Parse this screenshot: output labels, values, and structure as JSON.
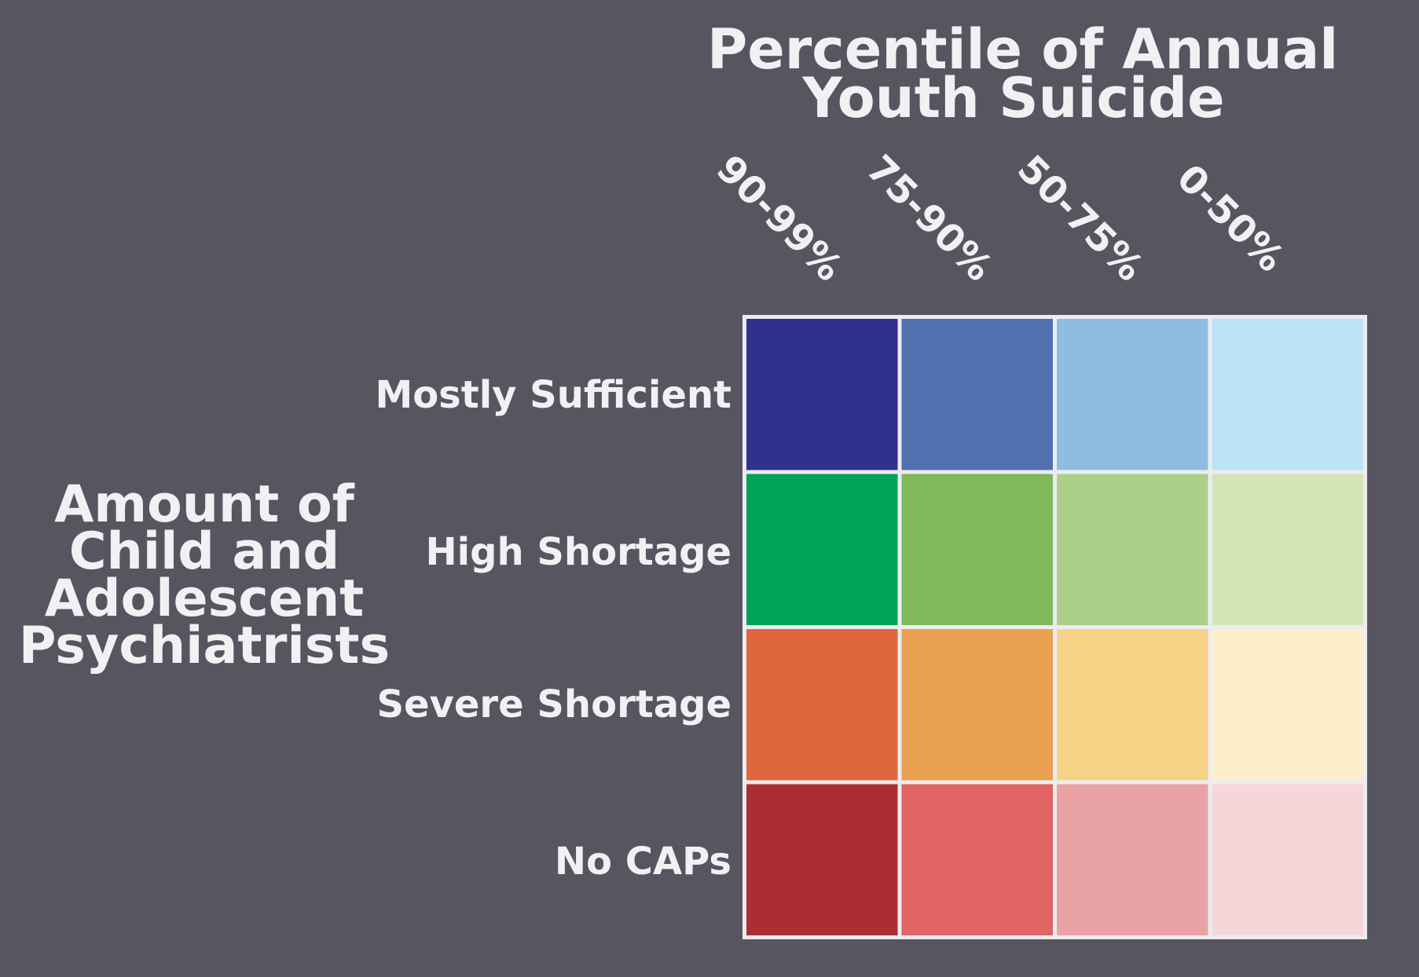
{
  "chart_data": {
    "type": "heatmap",
    "title_lines": [
      "Percentile of Annual",
      "Youth Suicide"
    ],
    "ylabel_lines": [
      "Amount of",
      "Child and",
      "Adolescent",
      "Psychiatrists"
    ],
    "columns": [
      "90-99%",
      "75-90%",
      "50-75%",
      "0-50%"
    ],
    "rows": [
      "Mostly Sufficient",
      "High Shortage",
      "Severe Shortage",
      "No CAPs"
    ],
    "cell_colors": [
      [
        "#30318c",
        "#5070b0",
        "#90bce4",
        "#bce2f6"
      ],
      [
        "#00a358",
        "#7fb95a",
        "#acd089",
        "#d5e5b8"
      ],
      [
        "#df663d",
        "#e9a051",
        "#f5d286",
        "#fdefcb"
      ],
      [
        "#ab2e33",
        "#e06463",
        "#eaa3a4",
        "#f5d6d9"
      ]
    ]
  }
}
